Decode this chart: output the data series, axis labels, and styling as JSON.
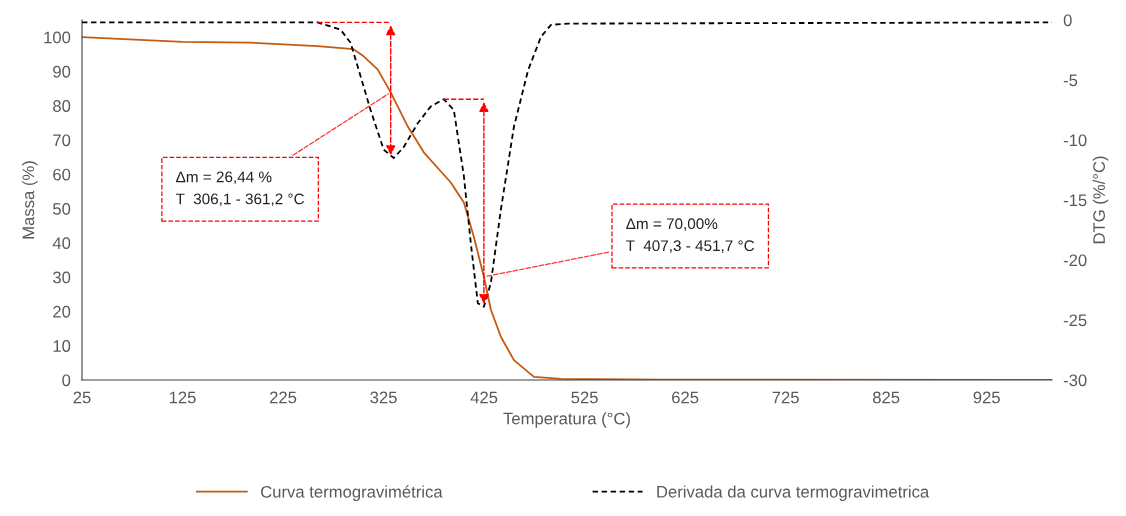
{
  "chart_data": {
    "type": "line",
    "xlabel": "Temperatura (°C)",
    "ylabel": "Massa (%)",
    "y2label": "DTG (%/°C)",
    "xlim": [
      25,
      990
    ],
    "xticks": [
      25,
      125,
      225,
      325,
      425,
      525,
      625,
      725,
      825,
      925
    ],
    "ylim": [
      0,
      105
    ],
    "yticks": [
      0,
      10,
      20,
      30,
      40,
      50,
      60,
      70,
      80,
      90,
      100
    ],
    "y2lim": [
      -30,
      0
    ],
    "y2ticks": [
      -30,
      -25,
      -20,
      -15,
      -10,
      -5,
      0
    ],
    "grid": false,
    "legend": "bottom",
    "series": [
      {
        "name": "Curva termogravimétrica",
        "color": "#c55a11",
        "line_style": "solid",
        "x": [
          25,
          125,
          192.5,
          259.3,
          295.2,
          305.2,
          319.1,
          332.1,
          349,
          365,
          391.9,
          404.9,
          414.8,
          424.8,
          431.8,
          441.7,
          454.7,
          474.6,
          501.6,
          600,
          990
        ],
        "values": [
          100,
          98.6,
          98.4,
          97.4,
          96.5,
          94.4,
          90.6,
          83.9,
          74,
          66.4,
          57.6,
          51.8,
          41.8,
          30.1,
          20.5,
          12.6,
          5.8,
          0.9,
          0.3,
          0.1,
          0
        ]
      },
      {
        "name": "Derivada da curva termogravimetrica",
        "color": "#000000",
        "line_style": "dashed",
        "axis": "y2",
        "x": [
          25,
          192.5,
          259.3,
          282.2,
          292.2,
          302.2,
          312.1,
          325.1,
          335.1,
          345,
          359,
          372,
          384.9,
          394.9,
          404.9,
          411.8,
          418.8,
          424.8,
          431.8,
          441.7,
          454.7,
          468.7,
          481.6,
          491.6,
          508.5,
          990
        ],
        "values": [
          -0.2,
          -0.2,
          -0.2,
          -0.8,
          -1.9,
          -4.7,
          -7.5,
          -10.8,
          -11.5,
          -10.6,
          -8.6,
          -7.2,
          -6.6,
          -7.5,
          -13.0,
          -18.6,
          -23.6,
          -23.9,
          -21.9,
          -15.8,
          -8.9,
          -4.2,
          -1.4,
          -0.4,
          -0.3,
          -0.2
        ]
      }
    ],
    "annotations": [
      {
        "text": "Δm = 26,44 %\nT  306,1 - 361,2 °C",
        "x": 332.1,
        "y": 83.9
      },
      {
        "text": "Δm = 70,00%\nT  407,3 - 451,7 °C",
        "x": 424.8,
        "y": 30.1
      }
    ]
  }
}
